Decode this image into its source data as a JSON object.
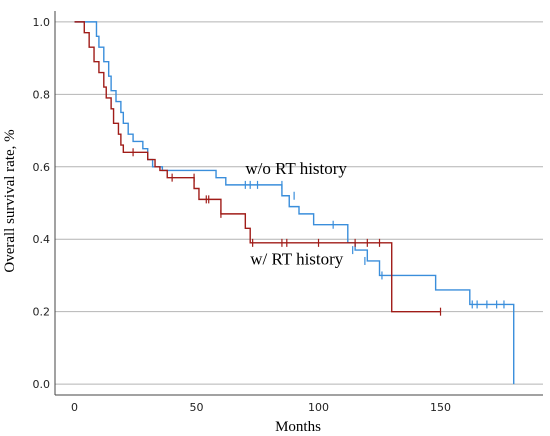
{
  "chart_data": {
    "type": "line",
    "title": "",
    "xlabel": "Months",
    "ylabel": "Overall survival rate, %",
    "xlim": [
      -8,
      192
    ],
    "ylim": [
      -0.03,
      1.03
    ],
    "xticks": [
      0,
      50,
      100,
      150
    ],
    "yticks": [
      0.0,
      0.2,
      0.4,
      0.6,
      0.8,
      1.0
    ],
    "xtick_labels": [
      "0",
      "50",
      "100",
      "150"
    ],
    "ytick_labels": [
      "0.0",
      "0.2",
      "0.4",
      "0.6",
      "0.8",
      "1.0"
    ],
    "grid": "horizontal",
    "step": true,
    "series": [
      {
        "name": "w/o RT history",
        "color": "#3a8edb",
        "x": [
          0,
          8,
          9,
          10,
          12,
          14,
          15,
          17,
          19,
          20,
          22,
          24,
          26,
          28,
          30,
          32,
          34,
          36,
          55,
          58,
          62,
          85,
          88,
          92,
          98,
          106,
          112,
          115,
          120,
          125,
          148,
          162,
          180,
          180
        ],
        "y": [
          1.0,
          1.0,
          0.96,
          0.93,
          0.89,
          0.85,
          0.81,
          0.78,
          0.75,
          0.72,
          0.69,
          0.67,
          0.67,
          0.65,
          0.62,
          0.6,
          0.6,
          0.59,
          0.59,
          0.57,
          0.55,
          0.52,
          0.49,
          0.47,
          0.44,
          0.44,
          0.39,
          0.37,
          0.34,
          0.3,
          0.26,
          0.22,
          0.22,
          0.0
        ]
      },
      {
        "name": "w/ RT history",
        "color": "#a01c18",
        "x": [
          0,
          3,
          4,
          6,
          8,
          10,
          12,
          13,
          15,
          16,
          18,
          19,
          20,
          22,
          30,
          33,
          35,
          38,
          49,
          51,
          60,
          70,
          72,
          130,
          130,
          150
        ],
        "y": [
          1.0,
          1.0,
          0.97,
          0.93,
          0.89,
          0.86,
          0.82,
          0.79,
          0.76,
          0.72,
          0.69,
          0.66,
          0.64,
          0.64,
          0.62,
          0.6,
          0.59,
          0.57,
          0.54,
          0.51,
          0.47,
          0.43,
          0.39,
          0.39,
          0.2,
          0.2
        ]
      }
    ],
    "censors": [
      {
        "series": "w/o RT history",
        "x": [
          70,
          72,
          75,
          85,
          90,
          106,
          114,
          119,
          126,
          163,
          165,
          169,
          173,
          176
        ],
        "y": [
          0.55,
          0.55,
          0.55,
          0.55,
          0.52,
          0.44,
          0.37,
          0.34,
          0.3,
          0.22,
          0.22,
          0.22,
          0.22,
          0.22
        ]
      },
      {
        "series": "w/ RT history",
        "x": [
          24,
          40,
          49,
          54,
          55,
          60,
          73,
          85,
          87,
          100,
          115,
          120,
          125,
          150
        ],
        "y": [
          0.64,
          0.57,
          0.57,
          0.51,
          0.51,
          0.47,
          0.39,
          0.39,
          0.39,
          0.39,
          0.39,
          0.39,
          0.39,
          0.2
        ]
      }
    ],
    "annotations": [
      {
        "text": "w/o RT history",
        "x": 70,
        "y": 0.58
      },
      {
        "text": "w/ RT history",
        "x": 72,
        "y": 0.33
      }
    ]
  }
}
